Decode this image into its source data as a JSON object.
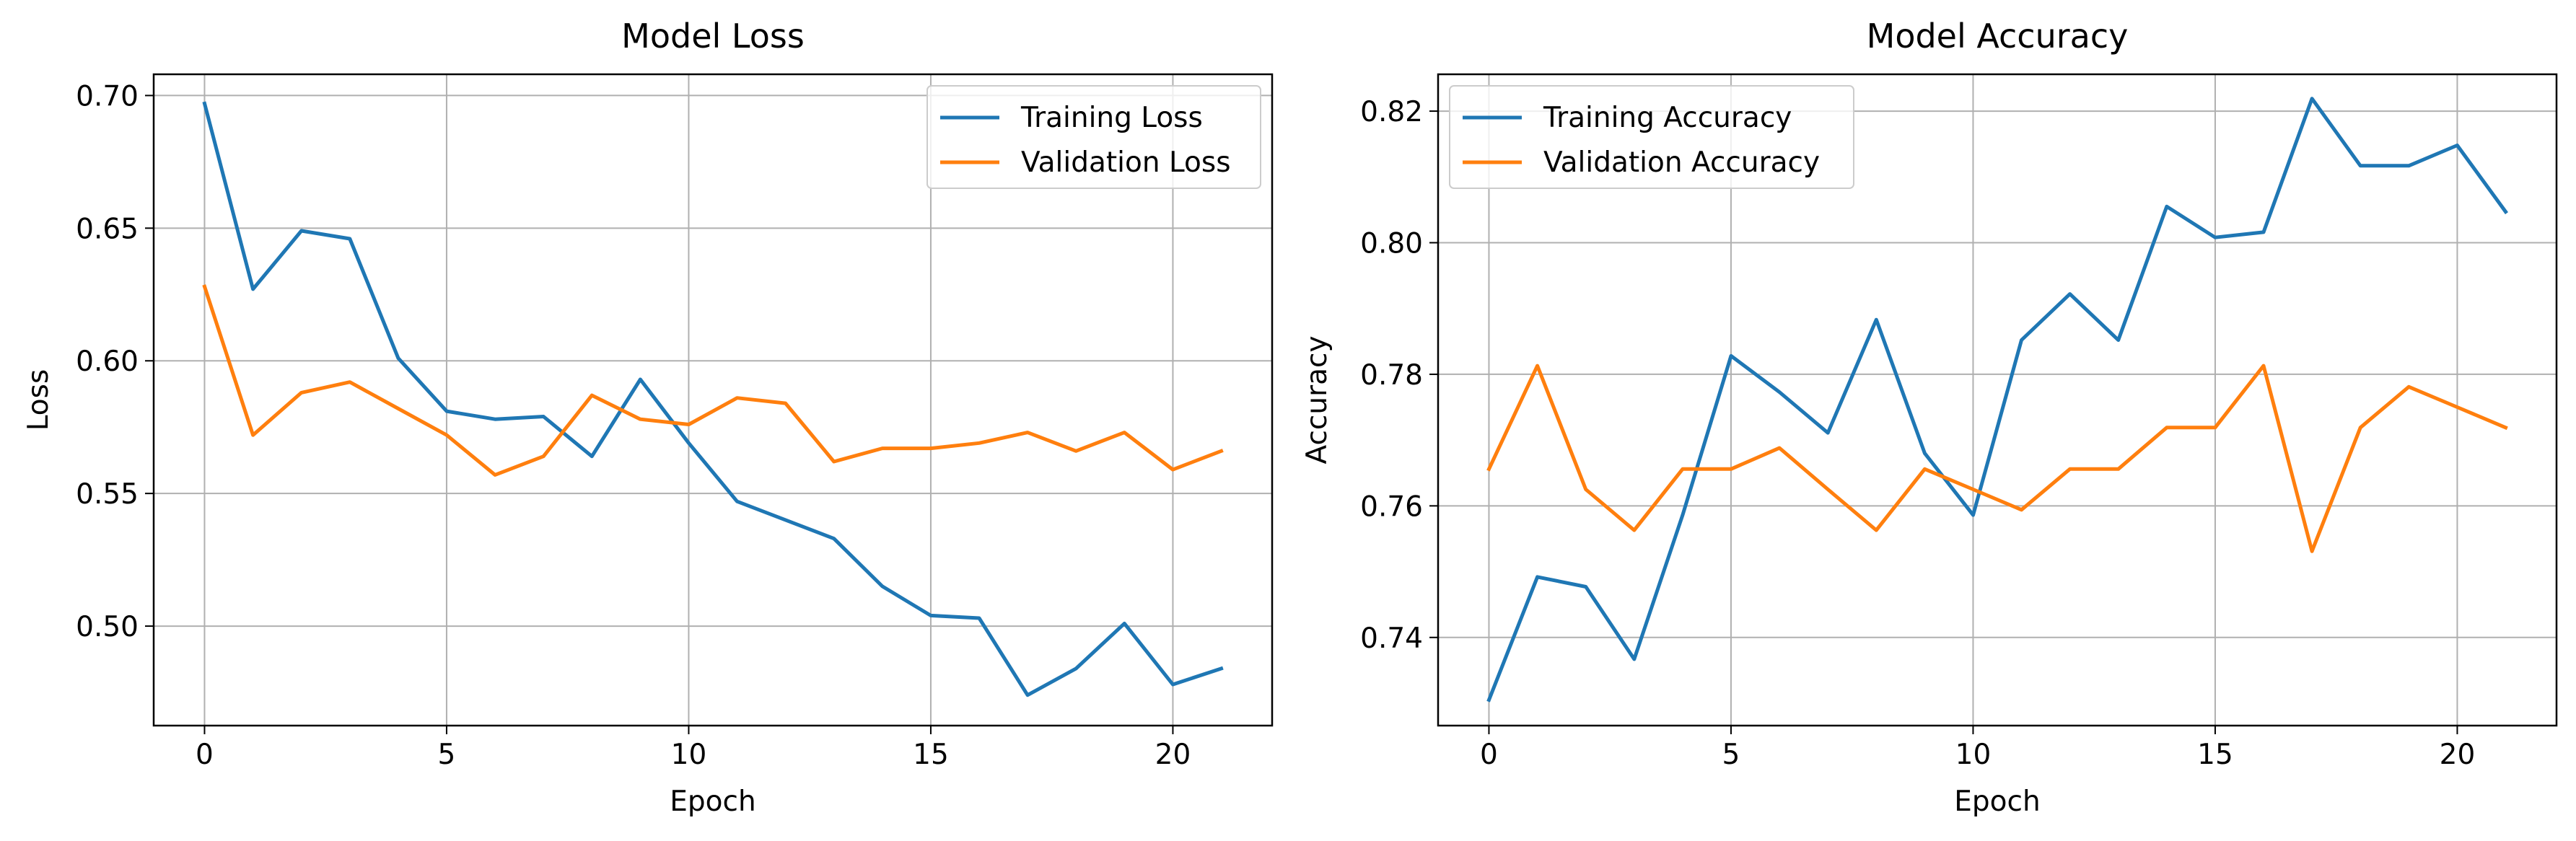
{
  "chart_data": [
    {
      "type": "line",
      "title": "Model Loss",
      "xlabel": "Epoch",
      "ylabel": "Loss",
      "xlim": [
        -1.05,
        22.05
      ],
      "ylim": [
        0.4625,
        0.708
      ],
      "xticks": [
        0,
        5,
        10,
        15,
        20
      ],
      "yticks": [
        0.5,
        0.55,
        0.6,
        0.65,
        0.7
      ],
      "ytick_labels": [
        "0.50",
        "0.55",
        "0.60",
        "0.65",
        "0.70"
      ],
      "grid": true,
      "legend": "top-right",
      "x": [
        0,
        1,
        2,
        3,
        4,
        5,
        6,
        7,
        8,
        9,
        10,
        11,
        12,
        13,
        14,
        15,
        16,
        17,
        18,
        19,
        20,
        21
      ],
      "series": [
        {
          "name": "Training Loss",
          "color": "#1f77b4",
          "values": [
            0.697,
            0.627,
            0.649,
            0.646,
            0.601,
            0.581,
            0.578,
            0.579,
            0.564,
            0.593,
            0.569,
            0.547,
            0.54,
            0.533,
            0.515,
            0.504,
            0.503,
            0.474,
            0.484,
            0.501,
            0.478,
            0.484
          ]
        },
        {
          "name": "Validation Loss",
          "color": "#ff7f0e",
          "values": [
            0.628,
            0.572,
            0.588,
            0.592,
            0.582,
            0.572,
            0.557,
            0.564,
            0.587,
            0.578,
            0.576,
            0.586,
            0.584,
            0.562,
            0.567,
            0.567,
            0.569,
            0.573,
            0.566,
            0.573,
            0.559,
            0.566
          ]
        }
      ]
    },
    {
      "type": "line",
      "title": "Model Accuracy",
      "xlabel": "Epoch",
      "ylabel": "Accuracy",
      "xlim": [
        -1.05,
        22.05
      ],
      "ylim": [
        0.7266,
        0.8256
      ],
      "xticks": [
        0,
        5,
        10,
        15,
        20
      ],
      "yticks": [
        0.74,
        0.76,
        0.78,
        0.8,
        0.82
      ],
      "ytick_labels": [
        "0.74",
        "0.76",
        "0.78",
        "0.80",
        "0.82"
      ],
      "grid": true,
      "legend": "top-left",
      "x": [
        0,
        1,
        2,
        3,
        4,
        5,
        6,
        7,
        8,
        9,
        10,
        11,
        12,
        13,
        14,
        15,
        16,
        17,
        18,
        19,
        20,
        21
      ],
      "series": [
        {
          "name": "Training Accuracy",
          "color": "#1f77b4",
          "values": [
            0.7305,
            0.7492,
            0.7477,
            0.7367,
            0.7586,
            0.7828,
            0.7773,
            0.7711,
            0.7883,
            0.768,
            0.7586,
            0.7852,
            0.7922,
            0.7852,
            0.8055,
            0.8008,
            0.8016,
            0.8219,
            0.8117,
            0.8117,
            0.8148,
            0.8047
          ]
        },
        {
          "name": "Validation Accuracy",
          "color": "#ff7f0e",
          "values": [
            0.7656,
            0.7813,
            0.7625,
            0.7563,
            0.7656,
            0.7656,
            0.7688,
            0.7625,
            0.7563,
            0.7656,
            0.7625,
            0.7594,
            0.7656,
            0.7656,
            0.7719,
            0.7719,
            0.7813,
            0.7531,
            0.7719,
            0.7781,
            0.775,
            0.7719
          ]
        }
      ]
    }
  ]
}
